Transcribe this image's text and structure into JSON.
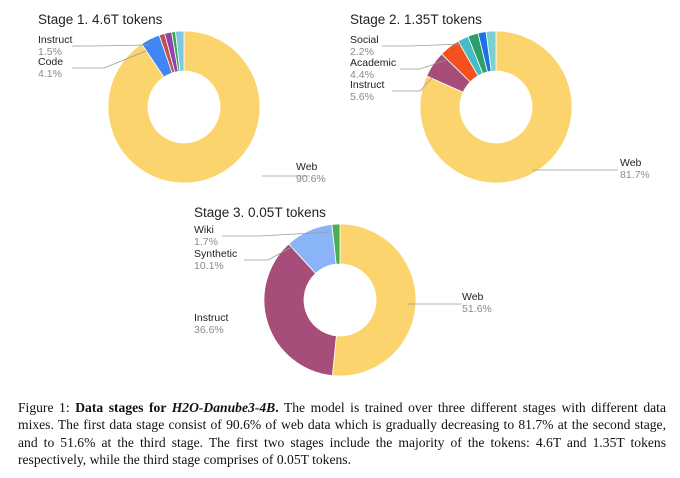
{
  "chart_data": [
    {
      "type": "pie",
      "title": "Stage 1. 4.6T tokens",
      "slices": [
        {
          "label": "Web",
          "value": 90.6,
          "display": "90.6%",
          "color": "#fbd46d"
        },
        {
          "label": "Code",
          "value": 4.1,
          "display": "4.1%",
          "color": "#4285f4"
        },
        {
          "label": "",
          "value": 1.2,
          "display": "",
          "color": "#c0504d"
        },
        {
          "label": "Instruct",
          "value": 1.5,
          "display": "1.5%",
          "color": "#8e44ad"
        },
        {
          "label": "",
          "value": 0.8,
          "display": "",
          "color": "#34a853"
        },
        {
          "label": "",
          "value": 1.8,
          "display": "",
          "color": "#7ec8e3"
        }
      ]
    },
    {
      "type": "pie",
      "title": "Stage 2. 1.35T tokens",
      "slices": [
        {
          "label": "Web",
          "value": 81.7,
          "display": "81.7%",
          "color": "#fbd46d"
        },
        {
          "label": "Instruct",
          "value": 5.6,
          "display": "5.6%",
          "color": "#a64d79"
        },
        {
          "label": "Academic",
          "value": 4.4,
          "display": "4.4%",
          "color": "#f4511e"
        },
        {
          "label": "",
          "value": 2.3,
          "display": "",
          "color": "#46bdc6"
        },
        {
          "label": "Social",
          "value": 2.2,
          "display": "2.2%",
          "color": "#2e9e6b"
        },
        {
          "label": "",
          "value": 1.7,
          "display": "",
          "color": "#1a73e8"
        },
        {
          "label": "",
          "value": 2.1,
          "display": "",
          "color": "#7ccfd1"
        }
      ]
    },
    {
      "type": "pie",
      "title": "Stage 3. 0.05T tokens",
      "slices": [
        {
          "label": "Web",
          "value": 51.6,
          "display": "51.6%",
          "color": "#fbd46d"
        },
        {
          "label": "Instruct",
          "value": 36.6,
          "display": "36.6%",
          "color": "#a64d79"
        },
        {
          "label": "Synthetic",
          "value": 10.1,
          "display": "10.1%",
          "color": "#8ab4f8"
        },
        {
          "label": "Wiki",
          "value": 1.7,
          "display": "1.7%",
          "color": "#4caf50"
        }
      ]
    }
  ],
  "caption": {
    "prefix": "Figure 1: ",
    "bold_text": "Data stages for ",
    "bold_italic_text": "H2O-Danube3-4B",
    "bold_period": ".",
    "body": " The model is trained over three different stages with different data mixes. The first data stage consist of 90.6% of web data which is gradually decreasing to 81.7% at the second stage, and to 51.6% at the third stage. The first two stages include the majority of the tokens: 4.6T and 1.35T tokens respectively, while the third stage comprises of 0.05T tokens."
  }
}
